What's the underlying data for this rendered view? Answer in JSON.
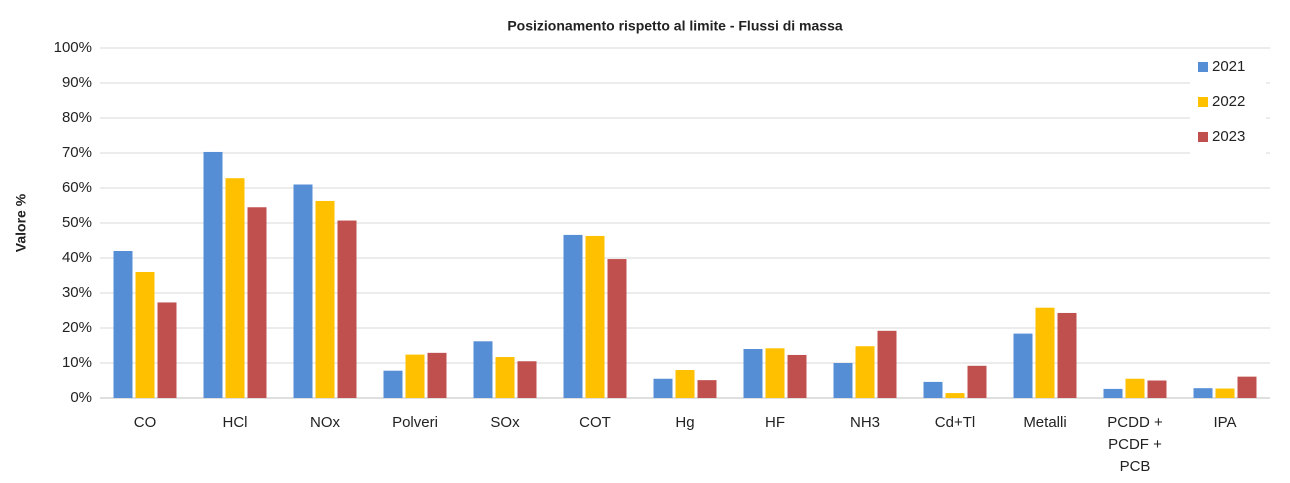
{
  "chart_data": {
    "type": "bar",
    "title": "Posizionamento rispetto al limite - Flussi di  massa",
    "y_label": "Valore %",
    "categories": [
      "CO",
      "HCl",
      "NOx",
      "Polveri",
      "SOx",
      "COT",
      "Hg",
      "HF",
      "NH3",
      "Cd+Tl",
      "Metalli",
      "PCDD + PCDF + PCB",
      "IPA"
    ],
    "series": [
      {
        "name": "2021",
        "color": "#558ed5",
        "values": [
          42,
          70.3,
          61,
          7.8,
          16.2,
          46.6,
          5.5,
          14,
          10,
          4.6,
          18.4,
          2.6,
          2.8
        ]
      },
      {
        "name": "2022",
        "color": "#ffc000",
        "values": [
          36,
          62.8,
          56.3,
          12.4,
          11.7,
          46.3,
          8,
          14.2,
          14.8,
          1.4,
          25.8,
          5.5,
          2.7
        ]
      },
      {
        "name": "2023",
        "color": "#c0504d",
        "values": [
          27.3,
          54.5,
          50.7,
          12.9,
          10.5,
          39.7,
          5.1,
          12.3,
          19.2,
          9.2,
          24.3,
          5,
          6.1
        ]
      }
    ],
    "ylim": [
      0,
      100
    ],
    "yticks": [
      {
        "value": 0,
        "label": "0%"
      },
      {
        "value": 10,
        "label": "10%"
      },
      {
        "value": 20,
        "label": "20%"
      },
      {
        "value": 30,
        "label": "30%"
      },
      {
        "value": 40,
        "label": "40%"
      },
      {
        "value": 50,
        "label": "50%"
      },
      {
        "value": 60,
        "label": "60%"
      },
      {
        "value": 70,
        "label": "70%"
      },
      {
        "value": 80,
        "label": "80%"
      },
      {
        "value": 90,
        "label": "90%"
      },
      {
        "value": 100,
        "label": "100%"
      }
    ],
    "grid": true,
    "legend": "top-right"
  }
}
